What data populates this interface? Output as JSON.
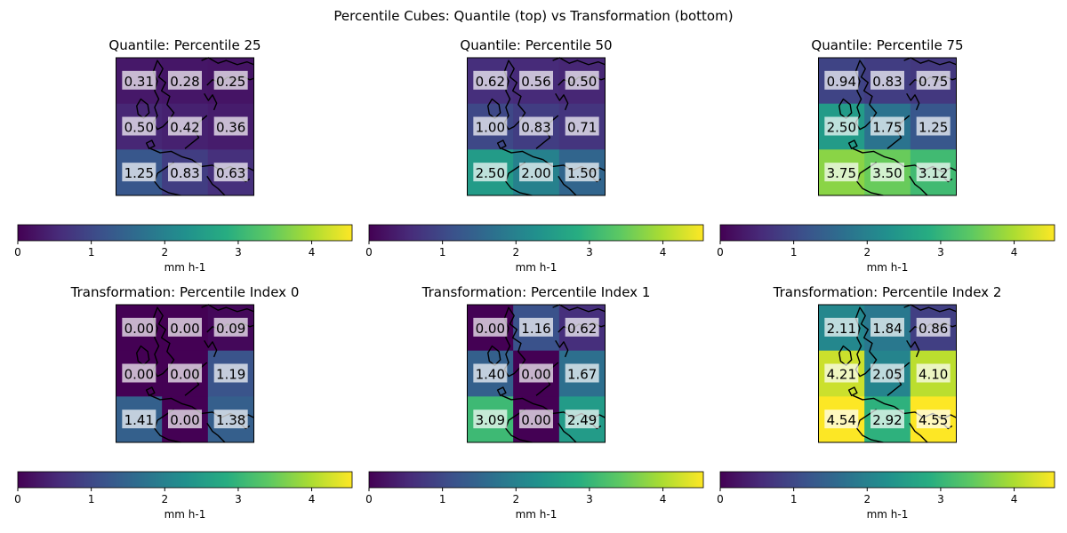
{
  "figure": {
    "title": "Percentile Cubes: Quantile (top) vs Transformation (bottom)"
  },
  "chart_data": [
    {
      "type": "heatmap",
      "title": "Quantile: Percentile 25",
      "values": [
        [
          0.31,
          0.28,
          0.25
        ],
        [
          0.5,
          0.42,
          0.36
        ],
        [
          1.25,
          0.83,
          0.63
        ]
      ],
      "labels": [
        [
          "0.31",
          "0.28",
          "0.25"
        ],
        [
          "0.50",
          "0.42",
          "0.36"
        ],
        [
          "1.25",
          "0.83",
          "0.63"
        ]
      ],
      "colorbar": {
        "label": "mm h-1",
        "ticks": [
          "0",
          "1",
          "2",
          "3",
          "4"
        ],
        "range": [
          0,
          4.55
        ]
      }
    },
    {
      "type": "heatmap",
      "title": "Quantile: Percentile 50",
      "values": [
        [
          0.62,
          0.56,
          0.5
        ],
        [
          1.0,
          0.83,
          0.71
        ],
        [
          2.5,
          2.0,
          1.5
        ]
      ],
      "labels": [
        [
          "0.62",
          "0.56",
          "0.50"
        ],
        [
          "1.00",
          "0.83",
          "0.71"
        ],
        [
          "2.50",
          "2.00",
          "1.50"
        ]
      ],
      "colorbar": {
        "label": "mm h-1",
        "ticks": [
          "0",
          "1",
          "2",
          "3",
          "4"
        ],
        "range": [
          0,
          4.55
        ]
      }
    },
    {
      "type": "heatmap",
      "title": "Quantile: Percentile 75",
      "values": [
        [
          0.94,
          0.83,
          0.75
        ],
        [
          2.5,
          1.75,
          1.25
        ],
        [
          3.75,
          3.5,
          3.12
        ]
      ],
      "labels": [
        [
          "0.94",
          "0.83",
          "0.75"
        ],
        [
          "2.50",
          "1.75",
          "1.25"
        ],
        [
          "3.75",
          "3.50",
          "3.12"
        ]
      ],
      "colorbar": {
        "label": "mm h-1",
        "ticks": [
          "0",
          "1",
          "2",
          "3",
          "4"
        ],
        "range": [
          0,
          4.55
        ]
      }
    },
    {
      "type": "heatmap",
      "title": "Transformation: Percentile Index 0",
      "values": [
        [
          0.0,
          0.0,
          0.09
        ],
        [
          0.0,
          0.0,
          1.19
        ],
        [
          1.41,
          0.0,
          1.38
        ]
      ],
      "labels": [
        [
          "0.00",
          "0.00",
          "0.09"
        ],
        [
          "0.00",
          "0.00",
          "1.19"
        ],
        [
          "1.41",
          "0.00",
          "1.38"
        ]
      ],
      "colorbar": {
        "label": "mm h-1",
        "ticks": [
          "0",
          "1",
          "2",
          "3",
          "4"
        ],
        "range": [
          0,
          4.55
        ]
      }
    },
    {
      "type": "heatmap",
      "title": "Transformation: Percentile Index 1",
      "values": [
        [
          0.0,
          1.16,
          0.62
        ],
        [
          1.4,
          0.0,
          1.67
        ],
        [
          3.09,
          0.0,
          2.49
        ]
      ],
      "labels": [
        [
          "0.00",
          "1.16",
          "0.62"
        ],
        [
          "1.40",
          "0.00",
          "1.67"
        ],
        [
          "3.09",
          "0.00",
          "2.49"
        ]
      ],
      "colorbar": {
        "label": "mm h-1",
        "ticks": [
          "0",
          "1",
          "2",
          "3",
          "4"
        ],
        "range": [
          0,
          4.55
        ]
      }
    },
    {
      "type": "heatmap",
      "title": "Transformation: Percentile Index 2",
      "values": [
        [
          2.11,
          1.84,
          0.86
        ],
        [
          4.21,
          2.05,
          4.1
        ],
        [
          4.54,
          2.92,
          4.55
        ]
      ],
      "labels": [
        [
          "2.11",
          "1.84",
          "0.86"
        ],
        [
          "4.21",
          "2.05",
          "4.10"
        ],
        [
          "4.54",
          "2.92",
          "4.55"
        ]
      ],
      "colorbar": {
        "label": "mm h-1",
        "ticks": [
          "0",
          "1",
          "2",
          "3",
          "4"
        ],
        "range": [
          0,
          4.55
        ]
      }
    }
  ],
  "colors": {
    "colormap": "viridis",
    "label_box": "#c9c9d2",
    "coastline": "#000000"
  }
}
